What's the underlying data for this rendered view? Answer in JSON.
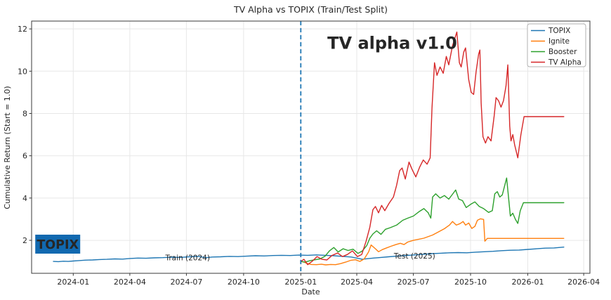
{
  "figure": {
    "badge": {
      "label": "TOPIX",
      "x": "2023-12-07",
      "y": 1.82,
      "width": 64,
      "height": 27,
      "bg": "#1169b0",
      "fg": "#ffffff",
      "font_size": 17.5
    }
  },
  "chart_data": {
    "type": "line",
    "title": "TV Alpha vs TOPIX (Train/Test Split)",
    "xlabel": "Date",
    "ylabel": "Cumulative Return (Start = 1.0)",
    "x_ticks": [
      "2024-01",
      "2024-04",
      "2024-07",
      "2024-10",
      "2025-01",
      "2025-04",
      "2025-07",
      "2025-10",
      "2026-01",
      "2026-04"
    ],
    "y_ticks": [
      2,
      4,
      6,
      8,
      10,
      12
    ],
    "x_range": [
      "2023-10-26",
      "2026-04-11"
    ],
    "y_range": [
      0.44,
      12.37
    ],
    "grid": true,
    "legend_position": "upper right",
    "split_line": {
      "x": "2025-01-01",
      "style": "dashed",
      "color": "#1f77b4"
    },
    "series": [
      {
        "name": "TOPIX",
        "color": "#1f77b4",
        "points": [
          [
            "2023-11-30",
            1.0
          ],
          [
            "2023-12-08",
            0.99
          ],
          [
            "2023-12-16",
            1.01
          ],
          [
            "2023-12-24",
            1.0
          ],
          [
            "2024-01-01",
            1.02
          ],
          [
            "2024-01-10",
            1.04
          ],
          [
            "2024-01-20",
            1.06
          ],
          [
            "2024-02-01",
            1.07
          ],
          [
            "2024-02-12",
            1.09
          ],
          [
            "2024-02-24",
            1.1
          ],
          [
            "2024-03-08",
            1.12
          ],
          [
            "2024-03-20",
            1.11
          ],
          [
            "2024-04-01",
            1.14
          ],
          [
            "2024-04-14",
            1.16
          ],
          [
            "2024-04-27",
            1.15
          ],
          [
            "2024-05-10",
            1.17
          ],
          [
            "2024-05-24",
            1.18
          ],
          [
            "2024-06-07",
            1.2
          ],
          [
            "2024-06-21",
            1.19
          ],
          [
            "2024-07-05",
            1.22
          ],
          [
            "2024-07-19",
            1.24
          ],
          [
            "2024-08-02",
            1.18
          ],
          [
            "2024-08-12",
            1.21
          ],
          [
            "2024-08-25",
            1.22
          ],
          [
            "2024-09-08",
            1.24
          ],
          [
            "2024-09-22",
            1.23
          ],
          [
            "2024-10-06",
            1.25
          ],
          [
            "2024-10-20",
            1.27
          ],
          [
            "2024-11-03",
            1.26
          ],
          [
            "2024-11-17",
            1.28
          ],
          [
            "2024-12-01",
            1.29
          ],
          [
            "2024-12-15",
            1.28
          ],
          [
            "2024-12-29",
            1.3
          ],
          [
            "2025-01-12",
            1.29
          ],
          [
            "2025-01-26",
            1.31
          ],
          [
            "2025-02-09",
            1.29
          ],
          [
            "2025-02-23",
            1.27
          ],
          [
            "2025-03-09",
            1.24
          ],
          [
            "2025-03-23",
            1.21
          ],
          [
            "2025-04-04",
            1.14
          ],
          [
            "2025-04-10",
            1.1
          ],
          [
            "2025-04-18",
            1.13
          ],
          [
            "2025-04-28",
            1.16
          ],
          [
            "2025-05-10",
            1.19
          ],
          [
            "2025-05-22",
            1.22
          ],
          [
            "2025-06-05",
            1.25
          ],
          [
            "2025-06-19",
            1.28
          ],
          [
            "2025-07-03",
            1.31
          ],
          [
            "2025-07-17",
            1.34
          ],
          [
            "2025-07-31",
            1.37
          ],
          [
            "2025-08-14",
            1.39
          ],
          [
            "2025-08-28",
            1.41
          ],
          [
            "2025-09-11",
            1.42
          ],
          [
            "2025-09-25",
            1.41
          ],
          [
            "2025-10-09",
            1.44
          ],
          [
            "2025-10-23",
            1.46
          ],
          [
            "2025-11-06",
            1.48
          ],
          [
            "2025-11-20",
            1.51
          ],
          [
            "2025-12-04",
            1.53
          ],
          [
            "2025-12-18",
            1.54
          ],
          [
            "2026-01-01",
            1.57
          ],
          [
            "2026-01-15",
            1.6
          ],
          [
            "2026-01-29",
            1.63
          ],
          [
            "2026-02-12",
            1.64
          ],
          [
            "2026-02-28",
            1.68
          ]
        ]
      },
      {
        "name": "Ignite",
        "color": "#ff7f0e",
        "points": [
          [
            "2025-01-01",
            1.0
          ],
          [
            "2025-01-06",
            0.97
          ],
          [
            "2025-01-12",
            0.9
          ],
          [
            "2025-01-18",
            0.86
          ],
          [
            "2025-01-26",
            0.85
          ],
          [
            "2025-02-03",
            0.87
          ],
          [
            "2025-02-10",
            0.84
          ],
          [
            "2025-02-18",
            0.86
          ],
          [
            "2025-02-26",
            0.85
          ],
          [
            "2025-03-06",
            0.9
          ],
          [
            "2025-03-14",
            0.97
          ],
          [
            "2025-03-22",
            1.05
          ],
          [
            "2025-03-30",
            1.08
          ],
          [
            "2025-04-06",
            1.0
          ],
          [
            "2025-04-13",
            1.12
          ],
          [
            "2025-04-20",
            1.45
          ],
          [
            "2025-04-24",
            1.78
          ],
          [
            "2025-05-01",
            1.6
          ],
          [
            "2025-05-06",
            1.46
          ],
          [
            "2025-05-12",
            1.56
          ],
          [
            "2025-05-18",
            1.63
          ],
          [
            "2025-05-26",
            1.72
          ],
          [
            "2025-06-03",
            1.8
          ],
          [
            "2025-06-10",
            1.86
          ],
          [
            "2025-06-16",
            1.8
          ],
          [
            "2025-06-22",
            1.92
          ],
          [
            "2025-07-01",
            2.0
          ],
          [
            "2025-07-18",
            2.1
          ],
          [
            "2025-08-01",
            2.25
          ],
          [
            "2025-08-10",
            2.39
          ],
          [
            "2025-08-20",
            2.55
          ],
          [
            "2025-08-28",
            2.72
          ],
          [
            "2025-09-02",
            2.89
          ],
          [
            "2025-09-08",
            2.72
          ],
          [
            "2025-09-14",
            2.79
          ],
          [
            "2025-09-19",
            2.89
          ],
          [
            "2025-09-23",
            2.72
          ],
          [
            "2025-09-28",
            2.82
          ],
          [
            "2025-10-03",
            2.56
          ],
          [
            "2025-10-08",
            2.66
          ],
          [
            "2025-10-12",
            2.95
          ],
          [
            "2025-10-17",
            3.02
          ],
          [
            "2025-10-22",
            2.99
          ],
          [
            "2025-10-24",
            1.96
          ],
          [
            "2025-10-28",
            2.09
          ],
          [
            "2026-02-28",
            2.09
          ]
        ]
      },
      {
        "name": "Booster",
        "color": "#2ca02c",
        "points": [
          [
            "2025-01-01",
            1.0
          ],
          [
            "2025-01-08",
            0.97
          ],
          [
            "2025-01-16",
            1.04
          ],
          [
            "2025-01-24",
            1.08
          ],
          [
            "2025-02-01",
            1.12
          ],
          [
            "2025-02-09",
            1.25
          ],
          [
            "2025-02-16",
            1.5
          ],
          [
            "2025-02-23",
            1.66
          ],
          [
            "2025-03-02",
            1.45
          ],
          [
            "2025-03-10",
            1.6
          ],
          [
            "2025-03-18",
            1.52
          ],
          [
            "2025-03-26",
            1.58
          ],
          [
            "2025-04-03",
            1.38
          ],
          [
            "2025-04-10",
            1.5
          ],
          [
            "2025-04-17",
            1.75
          ],
          [
            "2025-04-22",
            2.1
          ],
          [
            "2025-04-27",
            2.3
          ],
          [
            "2025-05-03",
            2.45
          ],
          [
            "2025-05-10",
            2.28
          ],
          [
            "2025-05-17",
            2.52
          ],
          [
            "2025-05-25",
            2.6
          ],
          [
            "2025-06-04",
            2.72
          ],
          [
            "2025-06-14",
            2.95
          ],
          [
            "2025-06-22",
            3.05
          ],
          [
            "2025-07-01",
            3.15
          ],
          [
            "2025-07-10",
            3.35
          ],
          [
            "2025-07-18",
            3.5
          ],
          [
            "2025-07-25",
            3.3
          ],
          [
            "2025-07-29",
            3.05
          ],
          [
            "2025-08-01",
            4.05
          ],
          [
            "2025-08-06",
            4.2
          ],
          [
            "2025-08-13",
            4.0
          ],
          [
            "2025-08-20",
            4.12
          ],
          [
            "2025-08-27",
            3.95
          ],
          [
            "2025-09-02",
            4.18
          ],
          [
            "2025-09-07",
            4.38
          ],
          [
            "2025-09-12",
            3.95
          ],
          [
            "2025-09-18",
            3.88
          ],
          [
            "2025-09-24",
            3.55
          ],
          [
            "2025-10-01",
            3.7
          ],
          [
            "2025-10-08",
            3.82
          ],
          [
            "2025-10-15",
            3.6
          ],
          [
            "2025-10-22",
            3.5
          ],
          [
            "2025-10-30",
            3.32
          ],
          [
            "2025-11-05",
            3.4
          ],
          [
            "2025-11-09",
            4.2
          ],
          [
            "2025-11-13",
            4.3
          ],
          [
            "2025-11-17",
            4.05
          ],
          [
            "2025-11-21",
            4.15
          ],
          [
            "2025-11-28",
            4.95
          ],
          [
            "2025-12-04",
            3.15
          ],
          [
            "2025-12-08",
            3.28
          ],
          [
            "2025-12-12",
            3.0
          ],
          [
            "2025-12-16",
            2.8
          ],
          [
            "2025-12-20",
            3.4
          ],
          [
            "2025-12-25",
            3.78
          ],
          [
            "2026-02-28",
            3.78
          ]
        ]
      },
      {
        "name": "TV Alpha",
        "color": "#d62728",
        "points": [
          [
            "2025-01-01",
            1.0
          ],
          [
            "2025-01-06",
            1.1
          ],
          [
            "2025-01-12",
            0.85
          ],
          [
            "2025-01-19",
            1.0
          ],
          [
            "2025-01-27",
            1.23
          ],
          [
            "2025-02-04",
            1.1
          ],
          [
            "2025-02-12",
            1.07
          ],
          [
            "2025-02-20",
            1.28
          ],
          [
            "2025-03-01",
            1.4
          ],
          [
            "2025-03-09",
            1.23
          ],
          [
            "2025-03-17",
            1.33
          ],
          [
            "2025-03-25",
            1.5
          ],
          [
            "2025-04-02",
            1.23
          ],
          [
            "2025-04-09",
            1.33
          ],
          [
            "2025-04-16",
            1.96
          ],
          [
            "2025-04-22",
            2.62
          ],
          [
            "2025-04-27",
            3.45
          ],
          [
            "2025-05-01",
            3.6
          ],
          [
            "2025-05-06",
            3.3
          ],
          [
            "2025-05-11",
            3.65
          ],
          [
            "2025-05-16",
            3.4
          ],
          [
            "2025-05-23",
            3.75
          ],
          [
            "2025-05-30",
            4.05
          ],
          [
            "2025-06-04",
            4.6
          ],
          [
            "2025-06-09",
            5.3
          ],
          [
            "2025-06-13",
            5.42
          ],
          [
            "2025-06-18",
            4.9
          ],
          [
            "2025-06-24",
            5.7
          ],
          [
            "2025-06-29",
            5.35
          ],
          [
            "2025-07-05",
            5.0
          ],
          [
            "2025-07-11",
            5.45
          ],
          [
            "2025-07-17",
            5.8
          ],
          [
            "2025-07-23",
            5.6
          ],
          [
            "2025-07-28",
            5.9
          ],
          [
            "2025-07-31",
            8.25
          ],
          [
            "2025-08-04",
            10.4
          ],
          [
            "2025-08-08",
            9.8
          ],
          [
            "2025-08-13",
            10.2
          ],
          [
            "2025-08-18",
            9.9
          ],
          [
            "2025-08-23",
            10.7
          ],
          [
            "2025-08-27",
            10.3
          ],
          [
            "2025-09-02",
            11.2
          ],
          [
            "2025-09-09",
            11.85
          ],
          [
            "2025-09-13",
            10.4
          ],
          [
            "2025-09-16",
            10.2
          ],
          [
            "2025-09-20",
            10.9
          ],
          [
            "2025-09-23",
            11.1
          ],
          [
            "2025-09-28",
            9.6
          ],
          [
            "2025-10-02",
            9.0
          ],
          [
            "2025-10-06",
            8.9
          ],
          [
            "2025-10-10",
            10.0
          ],
          [
            "2025-10-14",
            10.8
          ],
          [
            "2025-10-16",
            11.0
          ],
          [
            "2025-10-18",
            8.5
          ],
          [
            "2025-10-21",
            6.9
          ],
          [
            "2025-10-25",
            6.6
          ],
          [
            "2025-10-29",
            6.9
          ],
          [
            "2025-11-03",
            6.7
          ],
          [
            "2025-11-08",
            7.9
          ],
          [
            "2025-11-11",
            8.75
          ],
          [
            "2025-11-15",
            8.6
          ],
          [
            "2025-11-19",
            8.3
          ],
          [
            "2025-11-23",
            8.6
          ],
          [
            "2025-11-27",
            9.3
          ],
          [
            "2025-11-30",
            10.3
          ],
          [
            "2025-12-03",
            7.4
          ],
          [
            "2025-12-05",
            6.7
          ],
          [
            "2025-12-08",
            7.0
          ],
          [
            "2025-12-11",
            6.5
          ],
          [
            "2025-12-16",
            5.9
          ],
          [
            "2025-12-21",
            7.0
          ],
          [
            "2025-12-26",
            7.85
          ],
          [
            "2026-02-28",
            7.85
          ]
        ]
      }
    ],
    "annotations": [
      {
        "name": "train-period-label",
        "text": "Train (2024)",
        "x": "2024-07-03",
        "y": 1.05,
        "size": 10.5,
        "weight": "normal",
        "color": "#1a1a1a"
      },
      {
        "name": "test-period-label",
        "text": "Test (2025)",
        "x": "2025-07-03",
        "y": 1.13,
        "size": 10.5,
        "weight": "normal",
        "color": "#1a1a1a"
      },
      {
        "name": "tv-alpha-version-label",
        "text": "TV alpha v1.0",
        "x": "2025-05-28",
        "y": 11.05,
        "size": 24,
        "weight": "bold",
        "color": "#c8281f"
      }
    ]
  }
}
